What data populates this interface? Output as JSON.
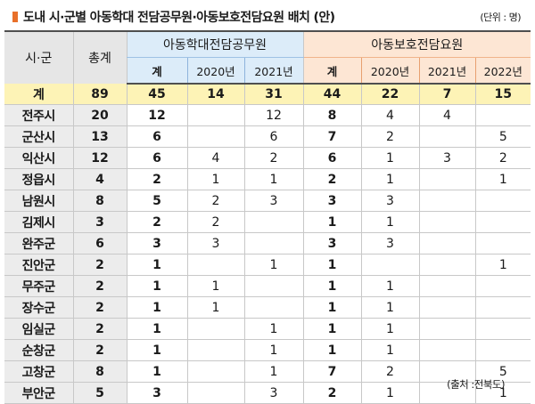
{
  "header": {
    "title": "도내 시·군별 아동학대 전담공무원·아동보호전담요원 배치 (안)",
    "unit": "(단위 : 명)"
  },
  "table": {
    "col_region": "시·군",
    "col_total": "총계",
    "group_officials": "아동학대전담공무원",
    "group_agents": "아동보호전담요원",
    "sub_officials": [
      "계",
      "2020년",
      "2021년"
    ],
    "sub_agents": [
      "계",
      "2020년",
      "2021년",
      "2022년"
    ],
    "rows": [
      {
        "region": "계",
        "cells": [
          "89",
          "45",
          "14",
          "31",
          "44",
          "22",
          "7",
          "15"
        ]
      },
      {
        "region": "전주시",
        "cells": [
          "20",
          "12",
          "",
          "12",
          "8",
          "4",
          "4",
          ""
        ]
      },
      {
        "region": "군산시",
        "cells": [
          "13",
          "6",
          "",
          "6",
          "7",
          "2",
          "",
          "5"
        ]
      },
      {
        "region": "익산시",
        "cells": [
          "12",
          "6",
          "4",
          "2",
          "6",
          "1",
          "3",
          "2"
        ]
      },
      {
        "region": "정읍시",
        "cells": [
          "4",
          "2",
          "1",
          "1",
          "2",
          "1",
          "",
          "1"
        ]
      },
      {
        "region": "남원시",
        "cells": [
          "8",
          "5",
          "2",
          "3",
          "3",
          "3",
          "",
          ""
        ]
      },
      {
        "region": "김제시",
        "cells": [
          "3",
          "2",
          "2",
          "",
          "1",
          "1",
          "",
          ""
        ]
      },
      {
        "region": "완주군",
        "cells": [
          "6",
          "3",
          "3",
          "",
          "3",
          "3",
          "",
          ""
        ]
      },
      {
        "region": "진안군",
        "cells": [
          "2",
          "1",
          "",
          "1",
          "1",
          "",
          "",
          "1"
        ]
      },
      {
        "region": "무주군",
        "cells": [
          "2",
          "1",
          "1",
          "",
          "1",
          "1",
          "",
          ""
        ]
      },
      {
        "region": "장수군",
        "cells": [
          "2",
          "1",
          "1",
          "",
          "1",
          "1",
          "",
          ""
        ]
      },
      {
        "region": "임실군",
        "cells": [
          "2",
          "1",
          "",
          "1",
          "1",
          "1",
          "",
          ""
        ]
      },
      {
        "region": "순창군",
        "cells": [
          "2",
          "1",
          "",
          "1",
          "1",
          "1",
          "",
          ""
        ]
      },
      {
        "region": "고창군",
        "cells": [
          "8",
          "1",
          "",
          "1",
          "7",
          "2",
          "",
          "5"
        ]
      },
      {
        "region": "부안군",
        "cells": [
          "5",
          "3",
          "",
          "3",
          "2",
          "1",
          "",
          "1"
        ]
      }
    ]
  },
  "footer": {
    "source": "(출처 :전북도)"
  },
  "colors": {
    "accent": "#e8702a",
    "sum_row": "#fdf3b6",
    "officials_header": "#dcecf9",
    "agents_header": "#fde6d4"
  }
}
